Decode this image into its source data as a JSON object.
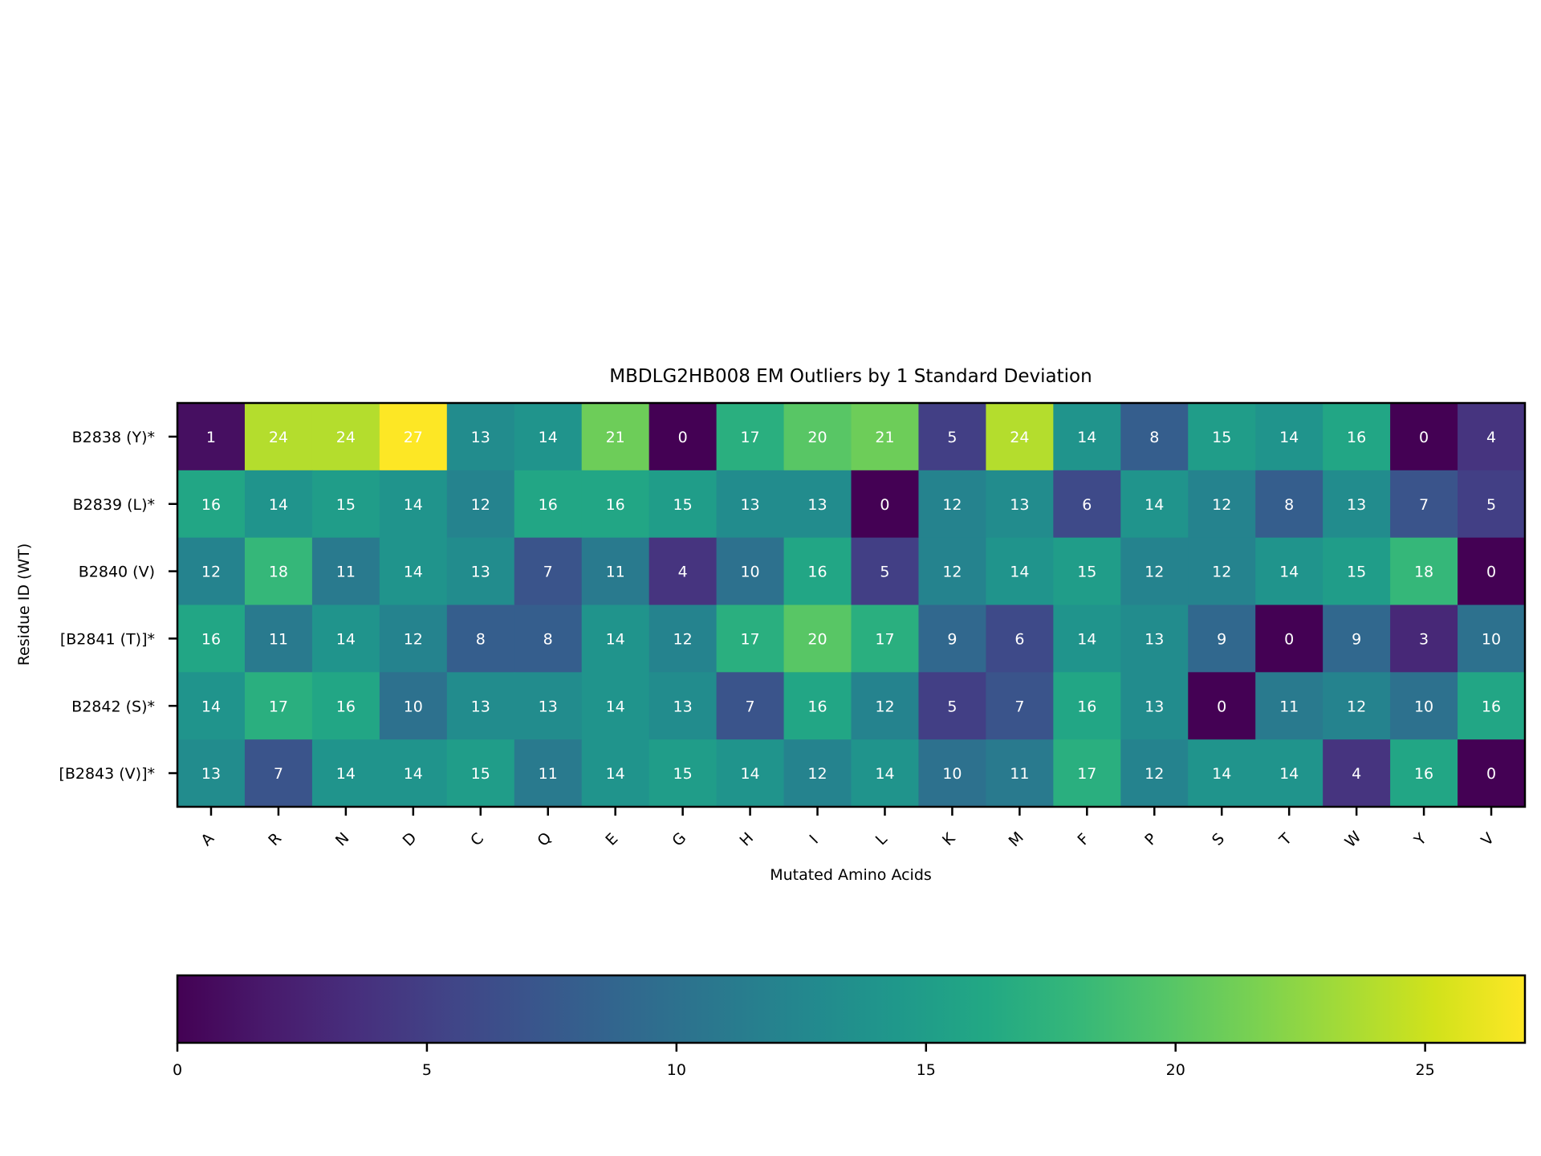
{
  "chart_data": {
    "type": "heatmap",
    "title": "MBDLG2HB008 EM Outliers by 1 Standard Deviation",
    "xlabel": "Mutated Amino Acids",
    "ylabel": "Residue ID (WT)",
    "x_categories": [
      "A",
      "R",
      "N",
      "D",
      "C",
      "Q",
      "E",
      "G",
      "H",
      "I",
      "L",
      "K",
      "M",
      "F",
      "P",
      "S",
      "T",
      "W",
      "Y",
      "V"
    ],
    "y_categories": [
      "B2838 (Y)*",
      "B2839 (L)*",
      "B2840 (V)",
      "[B2841 (T)]*",
      "B2842 (S)*",
      "[B2843 (V)]*"
    ],
    "values": [
      [
        1,
        24,
        24,
        27,
        13,
        14,
        21,
        0,
        17,
        20,
        21,
        5,
        24,
        14,
        8,
        15,
        14,
        16,
        0,
        4
      ],
      [
        16,
        14,
        15,
        14,
        12,
        16,
        16,
        15,
        13,
        13,
        0,
        12,
        13,
        6,
        14,
        12,
        8,
        13,
        7,
        5
      ],
      [
        12,
        18,
        11,
        14,
        13,
        7,
        11,
        4,
        10,
        16,
        5,
        12,
        14,
        15,
        12,
        12,
        14,
        15,
        18,
        0
      ],
      [
        16,
        11,
        14,
        12,
        8,
        8,
        14,
        12,
        17,
        20,
        17,
        9,
        6,
        14,
        13,
        9,
        0,
        9,
        3,
        10
      ],
      [
        14,
        17,
        16,
        10,
        13,
        13,
        14,
        13,
        7,
        16,
        12,
        5,
        7,
        16,
        13,
        0,
        11,
        12,
        10,
        16
      ],
      [
        13,
        7,
        14,
        14,
        15,
        11,
        14,
        15,
        14,
        12,
        14,
        10,
        11,
        17,
        12,
        14,
        14,
        4,
        16,
        0
      ]
    ],
    "colorscale": "viridis",
    "color_range": [
      0,
      27
    ],
    "colorbar": {
      "orientation": "horizontal",
      "ticks": [
        0,
        5,
        10,
        15,
        20,
        25
      ]
    },
    "annotation_color": "#ffffff"
  }
}
